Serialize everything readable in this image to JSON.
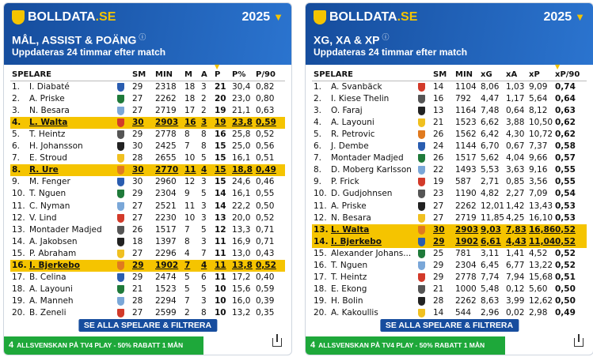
{
  "panels": [
    {
      "brand": {
        "name": "BOLLDATA",
        "tld": ".SE"
      },
      "season": "2025",
      "title": "MÅL, ASSIST & POÄNG",
      "subtitle": "Uppdateras 24 timmar efter match",
      "columns": [
        {
          "label": "SPELARE"
        },
        {
          "label": "SM"
        },
        {
          "label": "MIN"
        },
        {
          "label": "M"
        },
        {
          "label": "A"
        },
        {
          "label": "P",
          "sorted": true
        },
        {
          "label": "P%"
        },
        {
          "label": "P/90"
        }
      ],
      "rows": [
        {
          "cells": [
            "1.",
            "I. Diabaté",
            "29",
            "2318",
            "18",
            "3",
            "21",
            "30,4",
            "0,82"
          ]
        },
        {
          "cells": [
            "2.",
            "A. Priske",
            "27",
            "2262",
            "18",
            "2",
            "20",
            "23,0",
            "0,80"
          ]
        },
        {
          "cells": [
            "3.",
            "N. Besara",
            "27",
            "2719",
            "17",
            "2",
            "19",
            "21,1",
            "0,63"
          ]
        },
        {
          "cells": [
            "4.",
            "L. Walta",
            "30",
            "2903",
            "16",
            "3",
            "19",
            "23,8",
            "0,59"
          ],
          "highlight": true
        },
        {
          "cells": [
            "5.",
            "T. Heintz",
            "29",
            "2778",
            "8",
            "8",
            "16",
            "25,8",
            "0,52"
          ]
        },
        {
          "cells": [
            "6.",
            "H. Johansson",
            "30",
            "2425",
            "7",
            "8",
            "15",
            "25,0",
            "0,56"
          ]
        },
        {
          "cells": [
            "7.",
            "E. Stroud",
            "28",
            "2655",
            "10",
            "5",
            "15",
            "16,1",
            "0,51"
          ]
        },
        {
          "cells": [
            "8.",
            "R. Ure",
            "30",
            "2770",
            "11",
            "4",
            "15",
            "18,8",
            "0,49"
          ],
          "highlight": true
        },
        {
          "cells": [
            "9.",
            "M. Fenger",
            "30",
            "2960",
            "12",
            "3",
            "15",
            "24,6",
            "0,46"
          ]
        },
        {
          "cells": [
            "10.",
            "T. Nguen",
            "29",
            "2304",
            "9",
            "5",
            "14",
            "16,1",
            "0,55"
          ]
        },
        {
          "cells": [
            "11.",
            "C. Nyman",
            "27",
            "2521",
            "11",
            "3",
            "14",
            "22,2",
            "0,50"
          ]
        },
        {
          "cells": [
            "12.",
            "V. Lind",
            "27",
            "2230",
            "10",
            "3",
            "13",
            "20,0",
            "0,52"
          ]
        },
        {
          "cells": [
            "13.",
            "Montader Madjed",
            "26",
            "1517",
            "7",
            "5",
            "12",
            "13,3",
            "0,71"
          ]
        },
        {
          "cells": [
            "14.",
            "A. Jakobsen",
            "18",
            "1397",
            "8",
            "3",
            "11",
            "16,9",
            "0,71"
          ]
        },
        {
          "cells": [
            "15.",
            "P. Abraham",
            "27",
            "2296",
            "4",
            "7",
            "11",
            "13,0",
            "0,43"
          ]
        },
        {
          "cells": [
            "16.",
            "I. Bjerkebo",
            "29",
            "1902",
            "7",
            "4",
            "11",
            "13,8",
            "0,52"
          ],
          "highlight": true
        },
        {
          "cells": [
            "17.",
            "B. Celina",
            "29",
            "2474",
            "5",
            "6",
            "11",
            "17,2",
            "0,40"
          ]
        },
        {
          "cells": [
            "18.",
            "A. Layouni",
            "21",
            "1523",
            "5",
            "5",
            "10",
            "15,6",
            "0,59"
          ]
        },
        {
          "cells": [
            "19.",
            "A. Manneh",
            "28",
            "2294",
            "7",
            "3",
            "10",
            "16,0",
            "0,39"
          ]
        },
        {
          "cells": [
            "20.",
            "B. Zeneli",
            "27",
            "2599",
            "2",
            "8",
            "10",
            "13,2",
            "0,35"
          ]
        }
      ],
      "button": "SE ALLA SPELARE & FILTRERA",
      "footer_logo": "4",
      "footer": "ALLSVENSKAN PÅ TV4 PLAY - 50% RABATT 1 MÅN"
    },
    {
      "brand": {
        "name": "BOLLDATA",
        "tld": ".SE"
      },
      "season": "2025",
      "title": "XG, XA & XP",
      "subtitle": "Uppdateras 24 timmar efter match",
      "columns": [
        {
          "label": "SPELARE"
        },
        {
          "label": "SM"
        },
        {
          "label": "MIN"
        },
        {
          "label": "xG"
        },
        {
          "label": "xA"
        },
        {
          "label": "xP"
        },
        {
          "label": "xP/90",
          "sorted": true
        }
      ],
      "rows": [
        {
          "cells": [
            "1.",
            "A. Svanbäck",
            "14",
            "1104",
            "8,06",
            "1,03",
            "9,09",
            "0,74"
          ]
        },
        {
          "cells": [
            "2.",
            "I. Kiese Thelin",
            "16",
            "792",
            "4,47",
            "1,17",
            "5,64",
            "0,64"
          ]
        },
        {
          "cells": [
            "3.",
            "O. Faraj",
            "13",
            "1164",
            "7,48",
            "0,64",
            "8,12",
            "0,63"
          ]
        },
        {
          "cells": [
            "4.",
            "A. Layouni",
            "21",
            "1523",
            "6,62",
            "3,88",
            "10,50",
            "0,62"
          ]
        },
        {
          "cells": [
            "5.",
            "R. Petrovic",
            "26",
            "1562",
            "6,42",
            "4,30",
            "10,72",
            "0,62"
          ]
        },
        {
          "cells": [
            "6.",
            "J. Dembe",
            "24",
            "1144",
            "6,70",
            "0,67",
            "7,37",
            "0,58"
          ]
        },
        {
          "cells": [
            "7.",
            "Montader Madjed",
            "26",
            "1517",
            "5,62",
            "4,04",
            "9,66",
            "0,57"
          ]
        },
        {
          "cells": [
            "8.",
            "D. Moberg Karlsson",
            "22",
            "1493",
            "5,53",
            "3,63",
            "9,16",
            "0,55"
          ]
        },
        {
          "cells": [
            "9.",
            "P. Frick",
            "19",
            "587",
            "2,71",
            "0,85",
            "3,56",
            "0,55"
          ]
        },
        {
          "cells": [
            "10.",
            "D. Gudjohnsen",
            "23",
            "1190",
            "4,82",
            "2,27",
            "7,09",
            "0,54"
          ]
        },
        {
          "cells": [
            "11.",
            "A. Priske",
            "27",
            "2262",
            "12,01",
            "1,42",
            "13,43",
            "0,53"
          ]
        },
        {
          "cells": [
            "12.",
            "N. Besara",
            "27",
            "2719",
            "11,85",
            "4,25",
            "16,10",
            "0,53"
          ]
        },
        {
          "cells": [
            "13.",
            "L. Walta",
            "30",
            "2903",
            "9,03",
            "7,83",
            "16,86",
            "0,52"
          ],
          "highlight": true
        },
        {
          "cells": [
            "14.",
            "I. Bjerkebo",
            "29",
            "1902",
            "6,61",
            "4,43",
            "11,04",
            "0,52"
          ],
          "highlight": true
        },
        {
          "cells": [
            "15.",
            "Alexander Johans...",
            "25",
            "781",
            "3,11",
            "1,41",
            "4,52",
            "0,52"
          ]
        },
        {
          "cells": [
            "16.",
            "T. Nguen",
            "29",
            "2304",
            "6,45",
            "6,77",
            "13,22",
            "0,52"
          ]
        },
        {
          "cells": [
            "17.",
            "T. Heintz",
            "29",
            "2778",
            "7,74",
            "7,94",
            "15,68",
            "0,51"
          ]
        },
        {
          "cells": [
            "18.",
            "E. Ekong",
            "21",
            "1000",
            "5,48",
            "0,12",
            "5,60",
            "0,50"
          ]
        },
        {
          "cells": [
            "19.",
            "H. Bolin",
            "28",
            "2262",
            "8,63",
            "3,99",
            "12,62",
            "0,50"
          ]
        },
        {
          "cells": [
            "20.",
            "A. Kakoullis",
            "14",
            "544",
            "2,96",
            "0,02",
            "2,98",
            "0,49"
          ]
        }
      ],
      "button": "SE ALLA SPELARE & FILTRERA",
      "footer_logo": "4",
      "footer": "ALLSVENSKAN PÅ TV4 PLAY - 50% RABATT 1 MÅN"
    }
  ]
}
